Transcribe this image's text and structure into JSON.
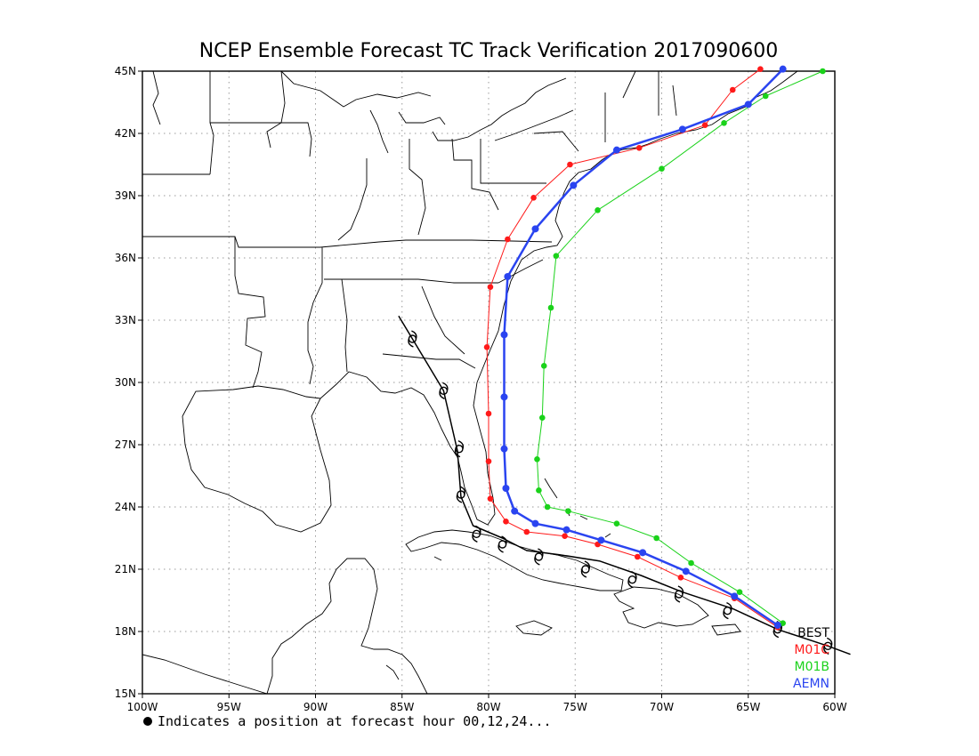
{
  "chart_data": {
    "type": "scatter",
    "title": "NCEP Ensemble Forecast TC Track Verification 2017090600",
    "xlim": [
      -100,
      -60
    ],
    "ylim": [
      15,
      45
    ],
    "x_ticks": [
      {
        "v": -100,
        "label": "100W"
      },
      {
        "v": -95,
        "label": "95W"
      },
      {
        "v": -90,
        "label": "90W"
      },
      {
        "v": -85,
        "label": "85W"
      },
      {
        "v": -80,
        "label": "80W"
      },
      {
        "v": -75,
        "label": "75W"
      },
      {
        "v": -70,
        "label": "70W"
      },
      {
        "v": -65,
        "label": "65W"
      },
      {
        "v": -60,
        "label": "60W"
      }
    ],
    "y_ticks": [
      {
        "v": 15,
        "label": "15N"
      },
      {
        "v": 18,
        "label": "18N"
      },
      {
        "v": 21,
        "label": "21N"
      },
      {
        "v": 24,
        "label": "24N"
      },
      {
        "v": 27,
        "label": "27N"
      },
      {
        "v": 30,
        "label": "30N"
      },
      {
        "v": 33,
        "label": "33N"
      },
      {
        "v": 36,
        "label": "36N"
      },
      {
        "v": 39,
        "label": "39N"
      },
      {
        "v": 42,
        "label": "42N"
      },
      {
        "v": 45,
        "label": "45N"
      }
    ],
    "grid": true,
    "legend_position": "bottom-right",
    "series": [
      {
        "name": "BEST",
        "color": "#000000",
        "marker": "hurricane-symbol",
        "points": [
          [
            -59.1,
            16.9
          ],
          [
            -60.4,
            17.3
          ],
          [
            -63.3,
            18.1
          ],
          [
            -65.9,
            19.1
          ],
          [
            -68.8,
            19.9
          ],
          [
            -71.2,
            20.7
          ],
          [
            -73.6,
            21.4
          ],
          [
            -75.9,
            21.7
          ],
          [
            -77.8,
            21.9
          ],
          [
            -79.2,
            22.5
          ],
          [
            -80.9,
            23.1
          ],
          [
            -81.6,
            24.5
          ],
          [
            -81.8,
            26.7
          ],
          [
            -82.6,
            29.6
          ],
          [
            -84.4,
            32.1
          ],
          [
            -85.2,
            33.2
          ]
        ],
        "symbols": [
          [
            -60.4,
            17.3
          ],
          [
            -63.3,
            18.1
          ],
          [
            -66.2,
            19.0
          ],
          [
            -69.0,
            19.8
          ],
          [
            -71.7,
            20.5
          ],
          [
            -74.4,
            21.0
          ],
          [
            -77.1,
            21.6
          ],
          [
            -79.2,
            22.2
          ],
          [
            -80.7,
            22.7
          ],
          [
            -81.6,
            24.6
          ],
          [
            -81.7,
            26.8
          ],
          [
            -82.6,
            29.6
          ],
          [
            -84.4,
            32.1
          ]
        ]
      },
      {
        "name": "M01C",
        "color": "#ff1a1a",
        "marker": "dot",
        "line_width": 1,
        "points": [
          [
            -63.3,
            18.2
          ],
          [
            -65.8,
            19.6
          ],
          [
            -68.9,
            20.6
          ],
          [
            -71.4,
            21.6
          ],
          [
            -73.7,
            22.2
          ],
          [
            -75.6,
            22.6
          ],
          [
            -77.8,
            22.8
          ],
          [
            -79.0,
            23.3
          ],
          [
            -79.9,
            24.4
          ],
          [
            -80.0,
            26.2
          ],
          [
            -80.0,
            28.5
          ],
          [
            -80.1,
            31.7
          ],
          [
            -79.9,
            34.6
          ],
          [
            -78.9,
            36.9
          ],
          [
            -77.4,
            38.9
          ],
          [
            -75.3,
            40.5
          ],
          [
            -71.3,
            41.3
          ],
          [
            -67.5,
            42.4
          ],
          [
            -65.9,
            44.1
          ],
          [
            -64.3,
            45.1
          ]
        ]
      },
      {
        "name": "M01B",
        "color": "#1ad21a",
        "marker": "dot",
        "line_width": 1,
        "points": [
          [
            -63.0,
            18.4
          ],
          [
            -65.5,
            19.9
          ],
          [
            -68.3,
            21.3
          ],
          [
            -70.3,
            22.5
          ],
          [
            -72.6,
            23.2
          ],
          [
            -75.4,
            23.8
          ],
          [
            -76.6,
            24.0
          ],
          [
            -77.1,
            24.8
          ],
          [
            -77.2,
            26.3
          ],
          [
            -76.9,
            28.3
          ],
          [
            -76.8,
            30.8
          ],
          [
            -76.4,
            33.6
          ],
          [
            -76.1,
            36.1
          ],
          [
            -73.7,
            38.3
          ],
          [
            -70.0,
            40.3
          ],
          [
            -66.4,
            42.5
          ],
          [
            -64.0,
            43.8
          ],
          [
            -60.7,
            45.0
          ]
        ]
      },
      {
        "name": "AEMN",
        "color": "#2a44f0",
        "marker": "dot",
        "line_width": 2.5,
        "points": [
          [
            -63.3,
            18.3
          ],
          [
            -65.8,
            19.7
          ],
          [
            -68.6,
            20.9
          ],
          [
            -71.1,
            21.8
          ],
          [
            -73.5,
            22.4
          ],
          [
            -75.5,
            22.9
          ],
          [
            -77.3,
            23.2
          ],
          [
            -78.5,
            23.8
          ],
          [
            -79.0,
            24.9
          ],
          [
            -79.1,
            26.8
          ],
          [
            -79.1,
            29.3
          ],
          [
            -79.1,
            32.3
          ],
          [
            -78.9,
            35.1
          ],
          [
            -77.3,
            37.4
          ],
          [
            -75.1,
            39.5
          ],
          [
            -72.6,
            41.2
          ],
          [
            -68.8,
            42.2
          ],
          [
            -65.0,
            43.4
          ],
          [
            -63.0,
            45.1
          ]
        ]
      }
    ],
    "footnote": "Indicates a position at forecast hour 00,12,24..."
  }
}
